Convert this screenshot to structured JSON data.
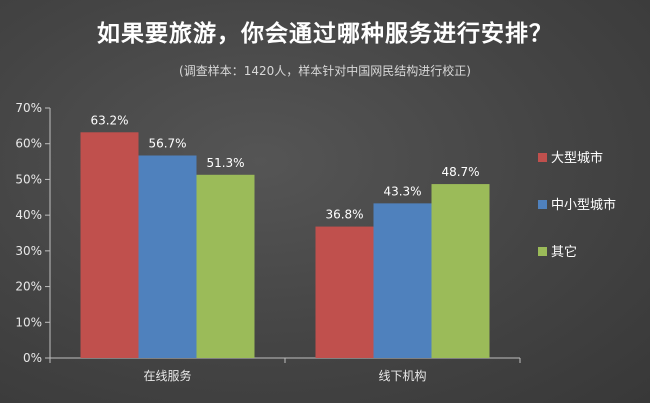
{
  "chart_data": {
    "type": "bar",
    "title": "如果要旅游，你会通过哪种服务进行安排？",
    "subtitle": "(调查样本：1420人，样本针对中国网民结构进行校正)",
    "categories": [
      "在线服务",
      "线下机构"
    ],
    "series": [
      {
        "name": "大型城市",
        "color": "#c0504d",
        "values": [
          63.2,
          36.8
        ],
        "labels": [
          "63.2%",
          "36.8%"
        ]
      },
      {
        "name": "中小型城市",
        "color": "#4f81bd",
        "values": [
          56.7,
          43.3
        ],
        "labels": [
          "56.7%",
          "43.3%"
        ]
      },
      {
        "name": "其它",
        "color": "#9bbb59",
        "values": [
          51.3,
          48.7
        ],
        "labels": [
          "51.3%",
          "48.7%"
        ]
      }
    ],
    "yticks": [
      "0%",
      "10%",
      "20%",
      "30%",
      "40%",
      "50%",
      "60%",
      "70%"
    ],
    "ylim": [
      0,
      70
    ],
    "grid": false,
    "legend_position": "right"
  }
}
